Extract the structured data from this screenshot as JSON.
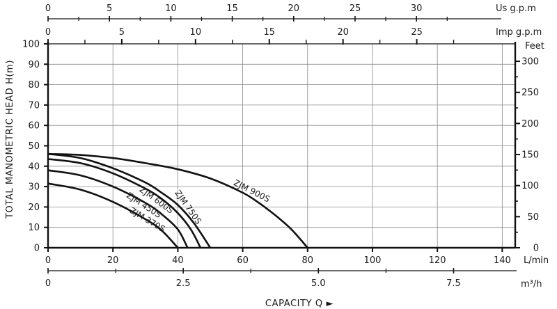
{
  "chart_data": {
    "type": "line",
    "title": "",
    "xlabel": "CAPACITY Q ►",
    "ylabel": "TOTAL MANOMETRIC HEAD H(m)",
    "x_unit": "L/min",
    "xlim": [
      0,
      144
    ],
    "ylim": [
      0,
      100
    ],
    "grid": true,
    "x_ticks": [
      "0",
      "20",
      "40",
      "60",
      "80",
      "100",
      "120",
      "140"
    ],
    "y_ticks": [
      "0",
      "10",
      "20",
      "30",
      "40",
      "50",
      "60",
      "70",
      "80",
      "90",
      "100"
    ],
    "right_axis": {
      "unit": "Feet",
      "ticks": [
        "0",
        "50",
        "100",
        "150",
        "200",
        "250",
        "300"
      ]
    },
    "top_axes": [
      {
        "unit": "Us g.p.m",
        "ticks": [
          "0",
          "5",
          "10",
          "15",
          "20",
          "25",
          "30"
        ]
      },
      {
        "unit": "Imp g.p.m",
        "ticks": [
          "0",
          "5",
          "10",
          "15",
          "20",
          "25"
        ]
      }
    ],
    "bottom_axis_2": {
      "unit": "m³/h",
      "ticks": [
        "0",
        "2.5",
        "5.0",
        "7.5"
      ]
    },
    "series": [
      {
        "name": "ZJM 900S",
        "x": [
          0,
          10,
          20,
          30,
          40,
          50,
          60,
          65,
          70,
          75,
          80
        ],
        "y": [
          46,
          45.5,
          44,
          41.5,
          38.5,
          34,
          27,
          22,
          16,
          9,
          0
        ]
      },
      {
        "name": "ZJM 750S",
        "x": [
          0,
          10,
          20,
          30,
          35,
          40,
          45,
          50
        ],
        "y": [
          46,
          44,
          39,
          32,
          27,
          21,
          12,
          0
        ]
      },
      {
        "name": "ZJM 600S",
        "x": [
          0,
          10,
          20,
          30,
          35,
          40,
          44,
          47
        ],
        "y": [
          43.5,
          41.5,
          36.5,
          29,
          24,
          17,
          9,
          0
        ]
      },
      {
        "name": "ZJM 450S",
        "x": [
          0,
          10,
          20,
          30,
          35,
          40,
          43
        ],
        "y": [
          38,
          35.5,
          30,
          22,
          16.5,
          9,
          0
        ]
      },
      {
        "name": "ZJM 370S",
        "x": [
          0,
          10,
          20,
          30,
          35,
          40
        ],
        "y": [
          31.5,
          28.5,
          22.5,
          14,
          8.5,
          0
        ]
      }
    ]
  }
}
